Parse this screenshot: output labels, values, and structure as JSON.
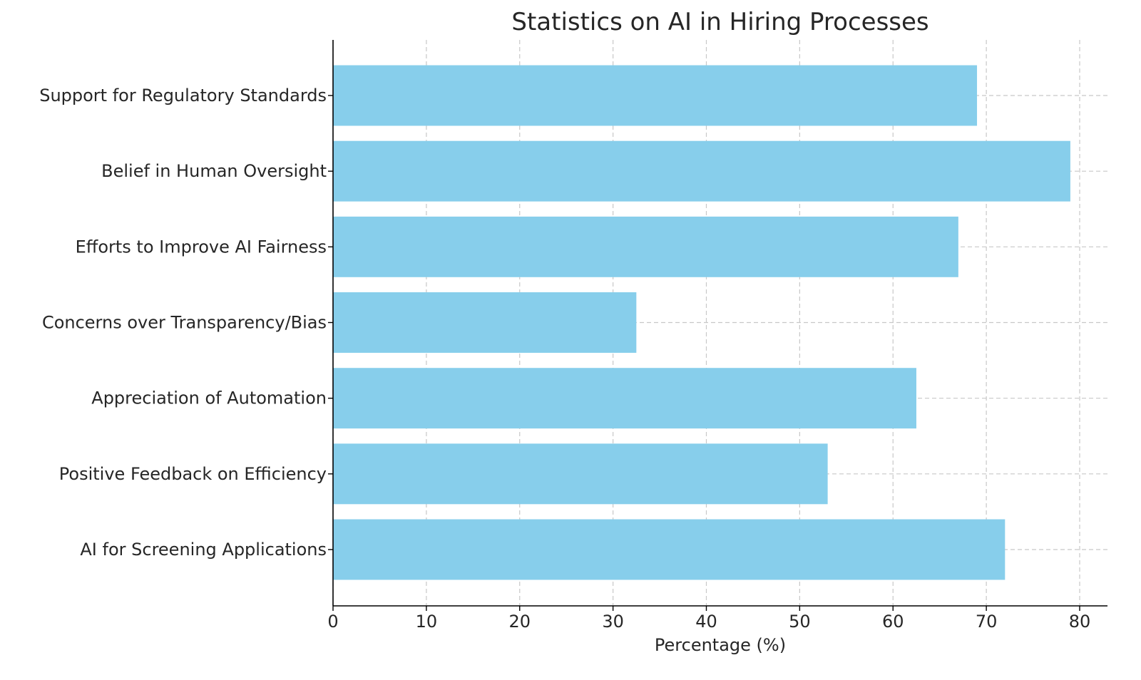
{
  "chart_data": {
    "type": "bar",
    "orientation": "horizontal",
    "title": "Statistics on AI in Hiring Processes",
    "xlabel": "Percentage (%)",
    "ylabel": "",
    "categories": [
      "AI for Screening Applications",
      "Positive Feedback on Efficiency",
      "Appreciation of Automation",
      "Concerns over Transparency/Bias",
      "Efforts to Improve AI Fairness",
      "Belief in Human Oversight",
      "Support for Regulatory Standards"
    ],
    "values": [
      72,
      53,
      62.5,
      32.5,
      67,
      79,
      69
    ],
    "xlim": [
      0,
      83
    ],
    "xticks": [
      0,
      10,
      20,
      30,
      40,
      50,
      60,
      70,
      80
    ],
    "grid": true,
    "bar_color": "#87ceeb"
  }
}
